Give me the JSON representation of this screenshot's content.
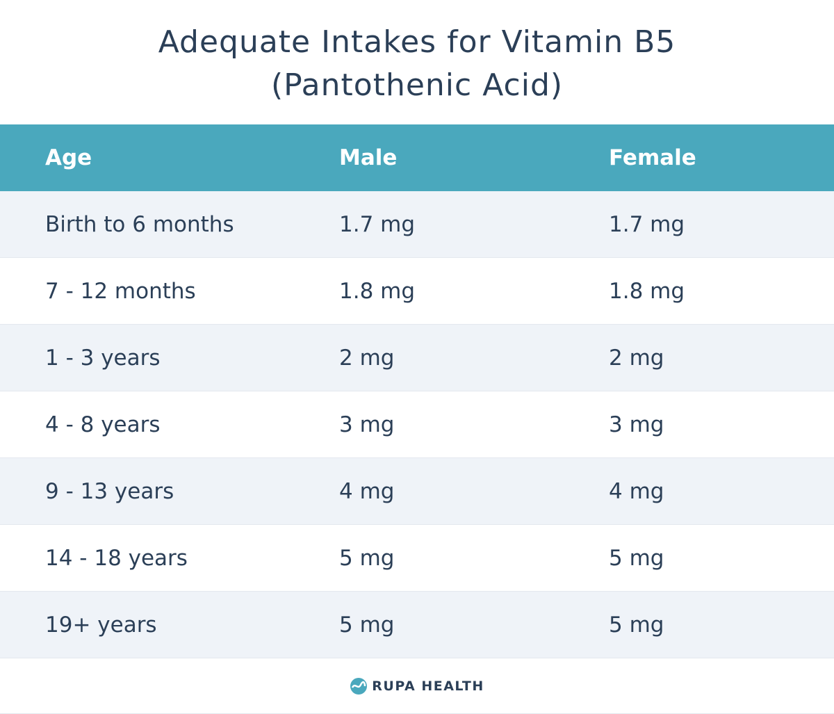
{
  "title": [
    "Adequate Intakes for Vitamin B5",
    "(Pantothenic Acid)"
  ],
  "table": {
    "header": [
      "Age",
      "Male",
      "Female"
    ],
    "rows": [
      [
        "Birth to 6 months",
        "1.7 mg",
        "1.7 mg"
      ],
      [
        "7 - 12 months",
        "1.8 mg",
        "1.8 mg"
      ],
      [
        "1 - 3 years",
        "2 mg",
        "2 mg"
      ],
      [
        "4 - 8 years",
        "3 mg",
        "3 mg"
      ],
      [
        "9 - 13 years",
        "4 mg",
        "4 mg"
      ],
      [
        "14 - 18 years",
        "5 mg",
        "5 mg"
      ],
      [
        "19+ years",
        "5 mg",
        "5 mg"
      ]
    ]
  },
  "footer": {
    "brand": "RUPA HEALTH"
  }
}
